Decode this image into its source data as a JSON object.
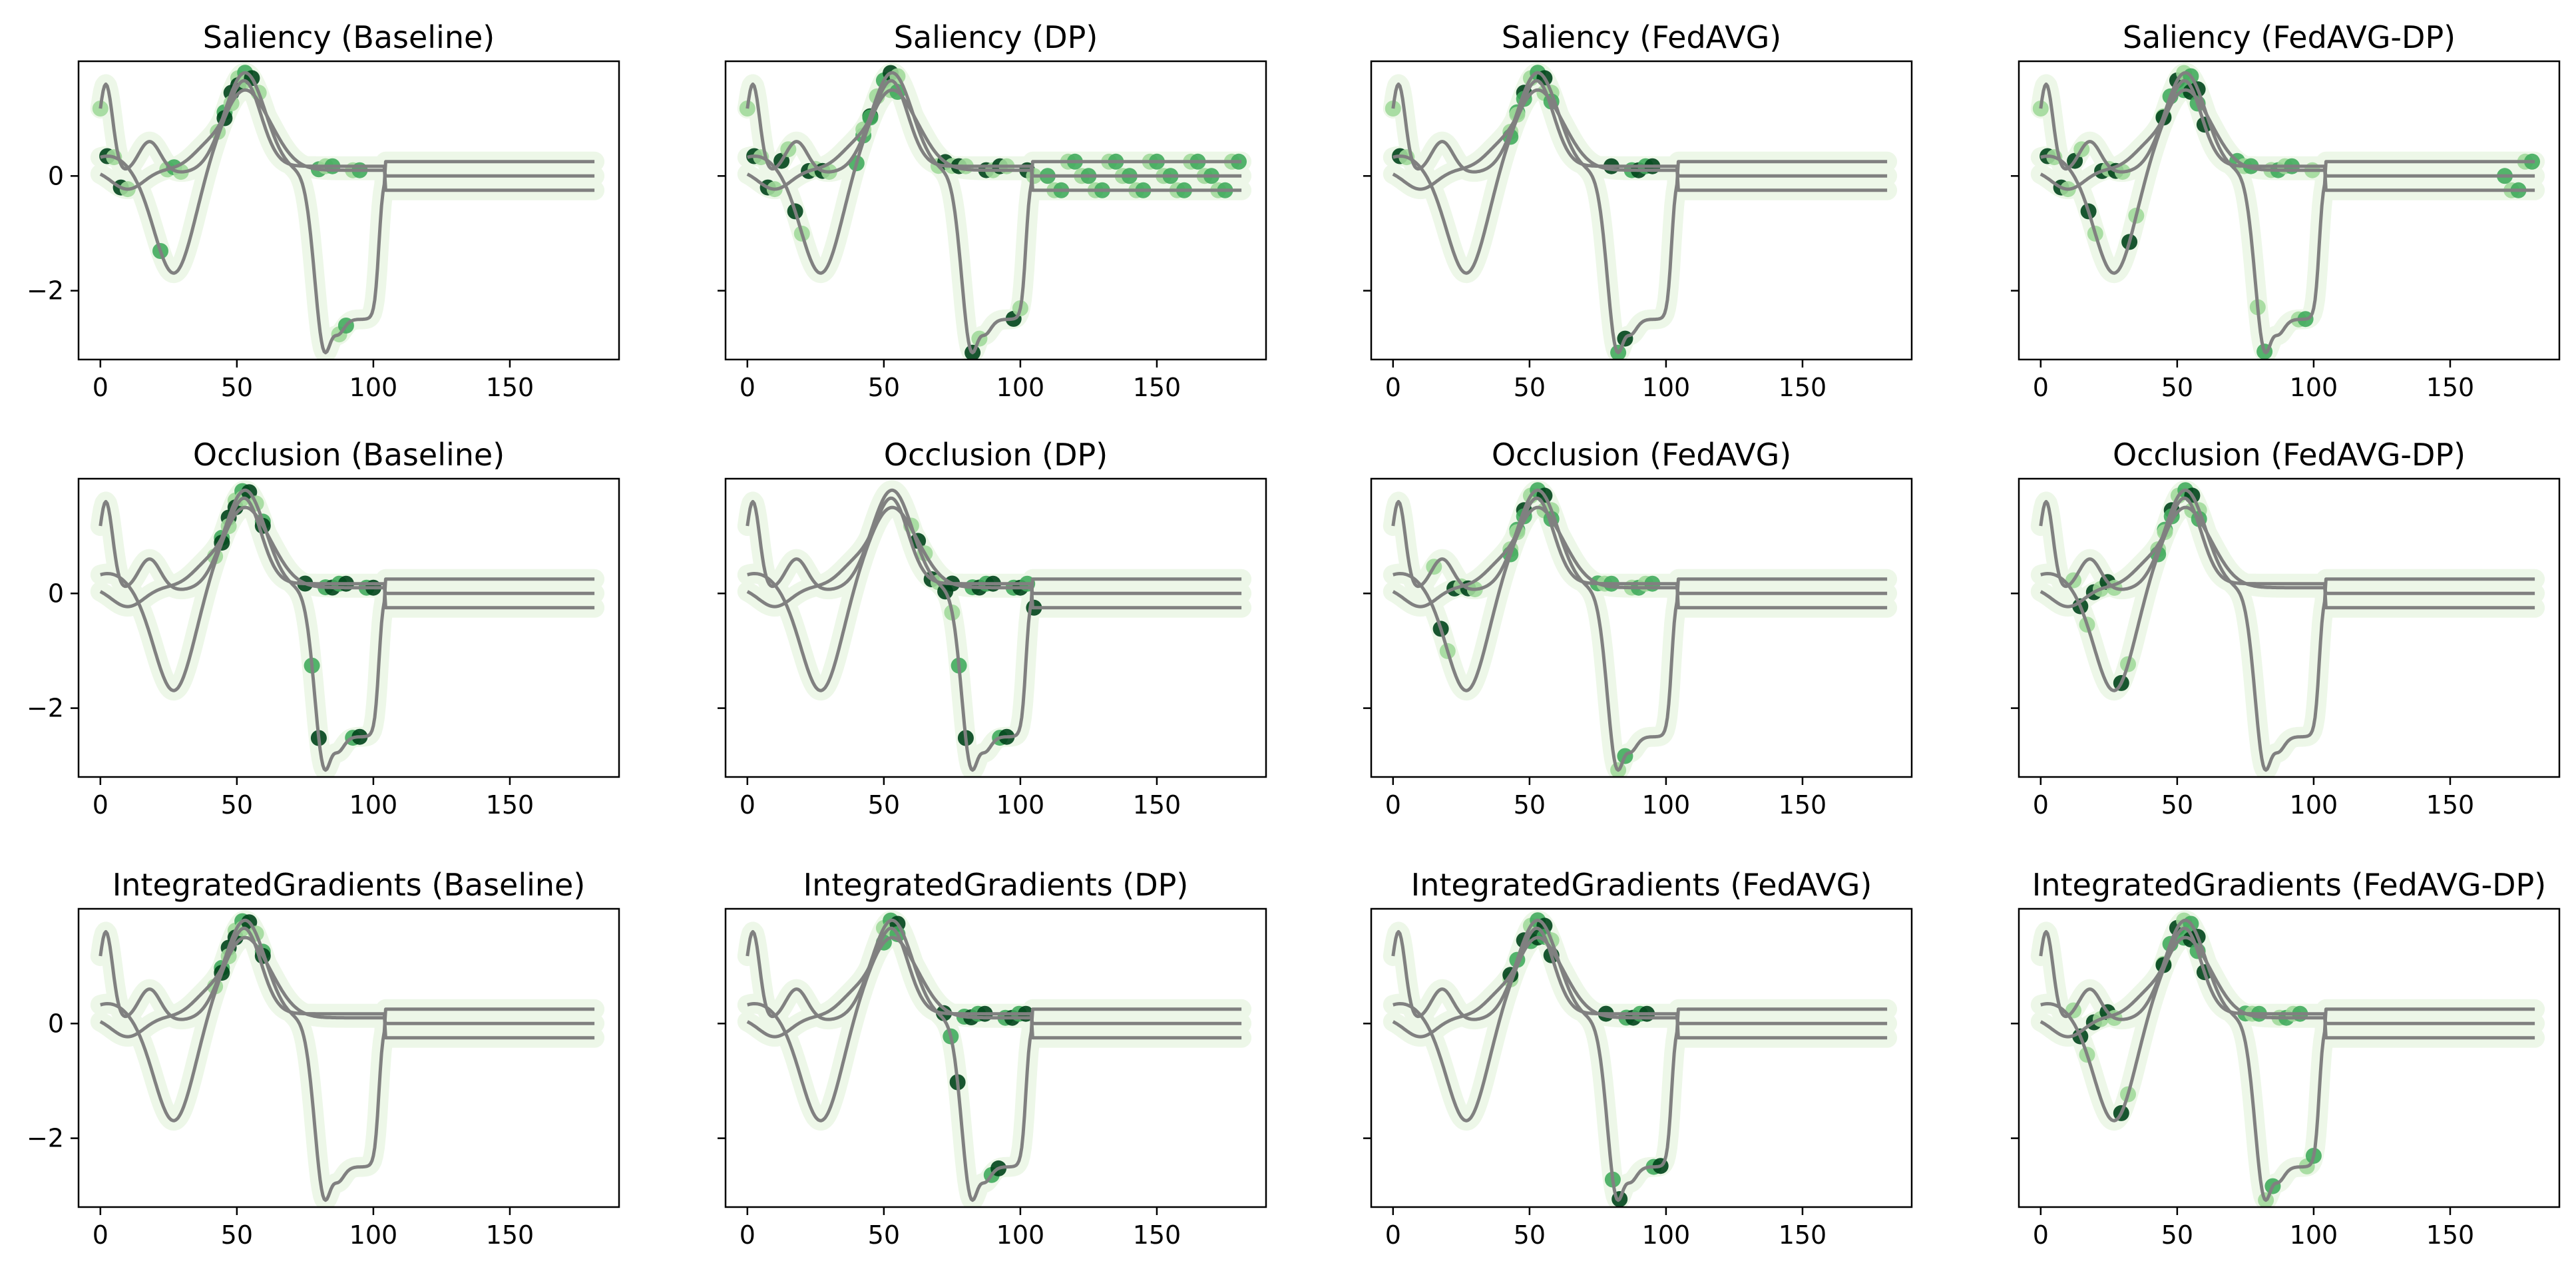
{
  "figure": {
    "layout": "3x4 grid of line plots with attribution markers",
    "shared_axes": "y shared per row; only first column shows y tick labels"
  },
  "colors": {
    "signal_line": "#808080",
    "attribution_halo": "#edf7e8",
    "attribution_dark": "#00441b",
    "attribution_mid": "#41ab5d",
    "attribution_light": "#a1d99b",
    "axes": "#000000",
    "background": "#ffffff"
  },
  "chart_data": [
    {
      "type": "line",
      "title": "Saliency (Baseline)",
      "xlim": [
        -8,
        190
      ],
      "ylim": [
        -3.2,
        2.0
      ],
      "xticks": [
        "0",
        "50",
        "100",
        "150"
      ],
      "yticks": [
        "0",
        "−2"
      ],
      "show_ytick_labels": true,
      "grid": false,
      "attribution_regions": [
        [
          0,
          10
        ],
        [
          22,
          30
        ],
        [
          43,
          60
        ],
        [
          80,
          95
        ]
      ]
    },
    {
      "type": "line",
      "title": "Saliency (DP)",
      "xlim": [
        -8,
        190
      ],
      "ylim": [
        -3.2,
        2.0
      ],
      "xticks": [
        "0",
        "50",
        "100",
        "150"
      ],
      "yticks": [
        "0",
        "−2"
      ],
      "show_ytick_labels": false,
      "grid": false,
      "attribution_regions": [
        [
          0,
          30
        ],
        [
          40,
          55
        ],
        [
          70,
          105
        ],
        [
          110,
          180
        ]
      ]
    },
    {
      "type": "line",
      "title": "Saliency (FedAVG)",
      "xlim": [
        -8,
        190
      ],
      "ylim": [
        -3.2,
        2.0
      ],
      "xticks": [
        "0",
        "50",
        "100",
        "150"
      ],
      "yticks": [
        "0",
        "−2"
      ],
      "show_ytick_labels": false,
      "grid": false,
      "attribution_regions": [
        [
          0,
          6
        ],
        [
          43,
          60
        ],
        [
          80,
          95
        ]
      ]
    },
    {
      "type": "line",
      "title": "Saliency (FedAVG-DP)",
      "xlim": [
        -8,
        190
      ],
      "ylim": [
        -3.2,
        2.0
      ],
      "xticks": [
        "0",
        "50",
        "100",
        "150"
      ],
      "yticks": [
        "0",
        "−2"
      ],
      "show_ytick_labels": false,
      "grid": false,
      "attribution_regions": [
        [
          0,
          35
        ],
        [
          45,
          60
        ],
        [
          72,
          100
        ],
        [
          170,
          180
        ]
      ]
    },
    {
      "type": "line",
      "title": "Occlusion (Baseline)",
      "xlim": [
        -8,
        190
      ],
      "ylim": [
        -3.2,
        2.0
      ],
      "xticks": [
        "0",
        "50",
        "100",
        "150"
      ],
      "yticks": [
        "0",
        "−2"
      ],
      "show_ytick_labels": true,
      "grid": false,
      "attribution_regions": [
        [
          42,
          60
        ],
        [
          75,
          100
        ]
      ]
    },
    {
      "type": "line",
      "title": "Occlusion (DP)",
      "xlim": [
        -8,
        190
      ],
      "ylim": [
        -3.2,
        2.0
      ],
      "xticks": [
        "0",
        "50",
        "100",
        "150"
      ],
      "yticks": [
        "0",
        "−2"
      ],
      "show_ytick_labels": false,
      "grid": false,
      "attribution_regions": [
        [
          60,
          75
        ],
        [
          75,
          105
        ]
      ]
    },
    {
      "type": "line",
      "title": "Occlusion (FedAVG)",
      "xlim": [
        -8,
        190
      ],
      "ylim": [
        -3.2,
        2.0
      ],
      "xticks": [
        "0",
        "50",
        "100",
        "150"
      ],
      "yticks": [
        "0",
        "−2"
      ],
      "show_ytick_labels": false,
      "grid": false,
      "attribution_regions": [
        [
          15,
          30
        ],
        [
          43,
          60
        ],
        [
          75,
          95
        ]
      ]
    },
    {
      "type": "line",
      "title": "Occlusion (FedAVG-DP)",
      "xlim": [
        -8,
        190
      ],
      "ylim": [
        -3.2,
        2.0
      ],
      "xticks": [
        "0",
        "50",
        "100",
        "150"
      ],
      "yticks": [
        "0",
        "−2"
      ],
      "show_ytick_labels": false,
      "grid": false,
      "attribution_regions": [
        [
          12,
          32
        ],
        [
          43,
          60
        ]
      ]
    },
    {
      "type": "line",
      "title": "IntegratedGradients (Baseline)",
      "xlim": [
        -8,
        190
      ],
      "ylim": [
        -3.2,
        2.0
      ],
      "xticks": [
        "0",
        "50",
        "100",
        "150"
      ],
      "yticks": [
        "0",
        "−2"
      ],
      "show_ytick_labels": true,
      "grid": false,
      "attribution_regions": [
        [
          42,
          60
        ]
      ]
    },
    {
      "type": "line",
      "title": "IntegratedGradients (DP)",
      "xlim": [
        -8,
        190
      ],
      "ylim": [
        -3.2,
        2.0
      ],
      "xticks": [
        "0",
        "50",
        "100",
        "150"
      ],
      "yticks": [
        "0",
        "−2"
      ],
      "show_ytick_labels": false,
      "grid": false,
      "attribution_regions": [
        [
          50,
          56
        ],
        [
          72,
          102
        ]
      ]
    },
    {
      "type": "line",
      "title": "IntegratedGradients (FedAVG)",
      "xlim": [
        -8,
        190
      ],
      "ylim": [
        -3.2,
        2.0
      ],
      "xticks": [
        "0",
        "50",
        "100",
        "150"
      ],
      "yticks": [
        "0",
        "−2"
      ],
      "show_ytick_labels": false,
      "grid": false,
      "attribution_regions": [
        [
          43,
          60
        ],
        [
          78,
          98
        ]
      ]
    },
    {
      "type": "line",
      "title": "IntegratedGradients (FedAVG-DP)",
      "xlim": [
        -8,
        190
      ],
      "ylim": [
        -3.2,
        2.0
      ],
      "xticks": [
        "0",
        "50",
        "100",
        "150"
      ],
      "yticks": [
        "0",
        "−2"
      ],
      "show_ytick_labels": false,
      "grid": false,
      "attribution_regions": [
        [
          12,
          32
        ],
        [
          45,
          60
        ],
        [
          75,
          100
        ]
      ]
    }
  ]
}
